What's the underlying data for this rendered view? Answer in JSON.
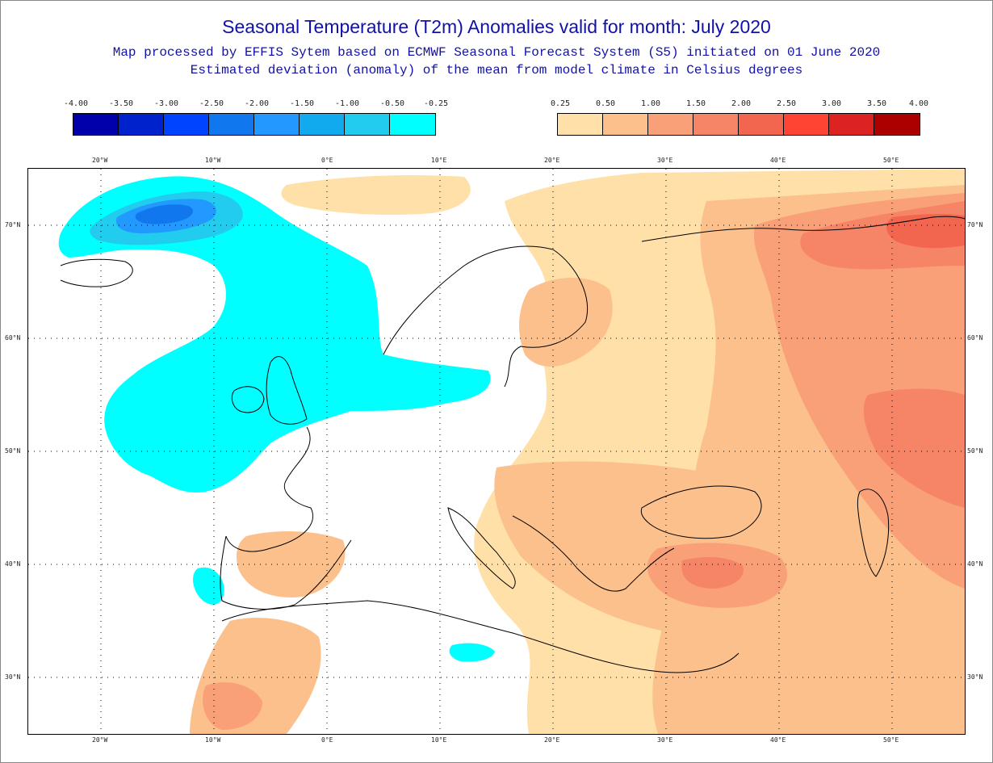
{
  "title": "Seasonal Temperature (T2m) Anomalies valid for month: July 2020",
  "subtitle1": "Map processed by EFFIS Sytem based on ECMWF Seasonal Forecast System (S5) initiated on 01 June 2020",
  "subtitle2": "Estimated deviation (anomaly) of the mean from model climate in Celsius degrees",
  "legend_cold": {
    "labels": [
      "-4.00",
      "-3.50",
      "-3.00",
      "-2.50",
      "-2.00",
      "-1.50",
      "-1.00",
      "-0.50",
      "-0.25"
    ],
    "colors": [
      "#0000aa",
      "#0022cc",
      "#0044ff",
      "#1177ee",
      "#2299ff",
      "#11aaee",
      "#22ccee",
      "#00ffff"
    ]
  },
  "legend_warm": {
    "labels": [
      "0.25",
      "0.50",
      "1.00",
      "1.50",
      "2.00",
      "2.50",
      "3.00",
      "3.50",
      "4.00"
    ],
    "colors": [
      "#ffe0a8",
      "#fcc08c",
      "#f9a078",
      "#f58566",
      "#f26650",
      "#ff4433",
      "#dd2222",
      "#aa0000"
    ]
  },
  "axes": {
    "lon_labels": [
      "20°W",
      "10°W",
      "0°E",
      "10°E",
      "20°E",
      "30°E",
      "40°E",
      "50°E"
    ],
    "lat_labels": [
      "70°N",
      "60°N",
      "50°N",
      "40°N",
      "30°N"
    ]
  },
  "map": {
    "colors": {
      "cold1": "#00ffff",
      "cold2": "#22ccee",
      "cold3": "#2299ff",
      "cold4": "#1177ee",
      "warm1": "#ffe0a8",
      "warm2": "#fcc08c",
      "warm3": "#f9a078",
      "warm4": "#f58566",
      "warm5": "#f26650"
    }
  }
}
